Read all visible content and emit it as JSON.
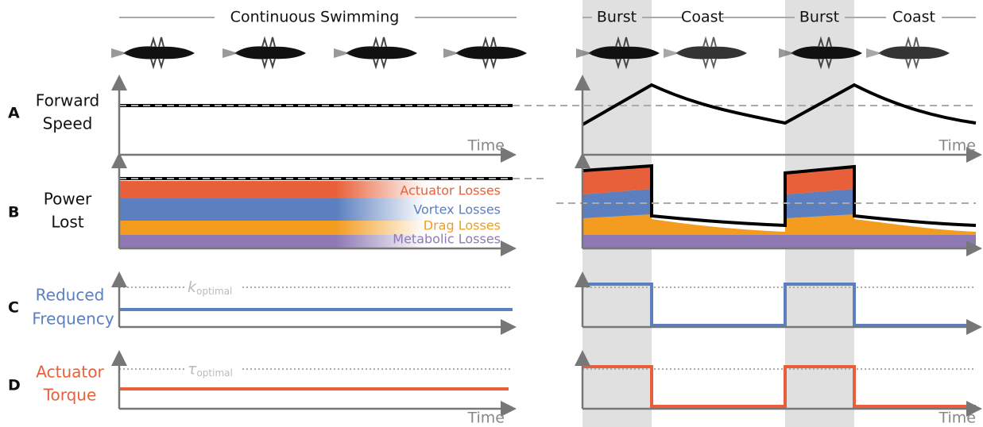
{
  "header": {
    "continuous": "Continuous Swimming",
    "phases": [
      "Burst",
      "Coast",
      "Burst",
      "Coast"
    ]
  },
  "panels": [
    {
      "letter": "A",
      "label": [
        "Forward",
        "Speed"
      ]
    },
    {
      "letter": "B",
      "label": [
        "Power",
        "Lost"
      ]
    },
    {
      "letter": "C",
      "label": [
        "Reduced",
        "Frequency"
      ]
    },
    {
      "letter": "D",
      "label": [
        "Actuator",
        "Torque"
      ]
    }
  ],
  "time_label": "Time",
  "losses": [
    "Actuator Losses",
    "Vortex Losses",
    "Drag Losses",
    "Metabolic Losses"
  ],
  "k_symbol": "k",
  "tau_symbol": "τ",
  "subscript": "optimal"
}
